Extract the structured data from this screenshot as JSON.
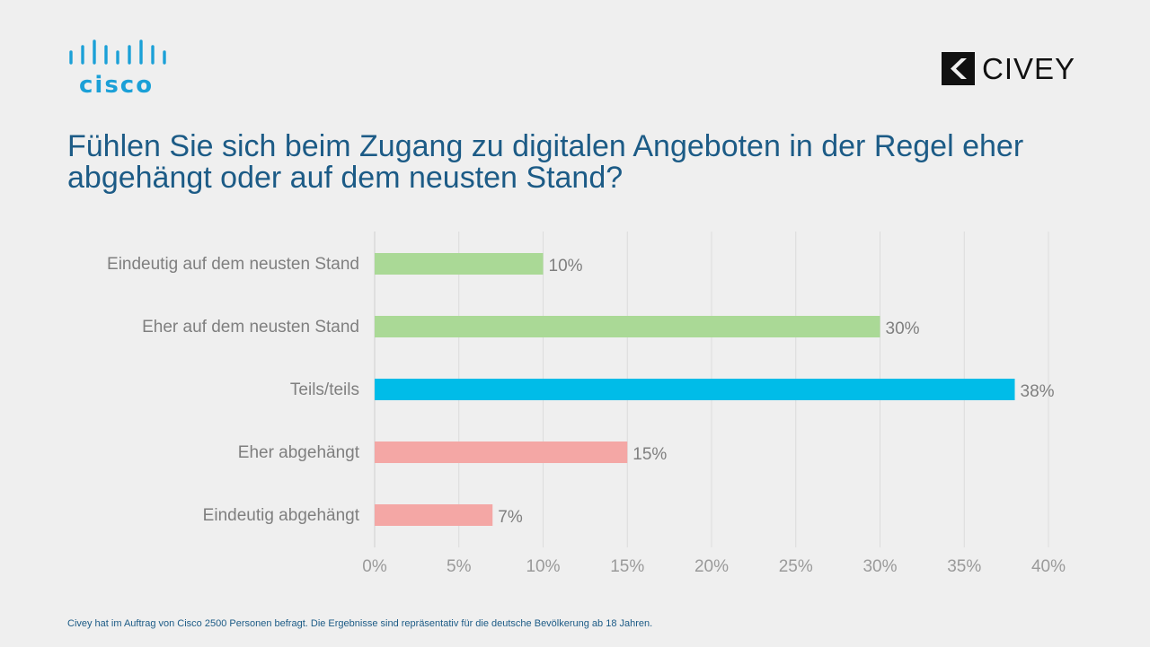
{
  "logos": {
    "left_brand": "cisco",
    "right_brand": "CIVEY",
    "left_color": "#1ba0d7"
  },
  "title": "Fühlen Sie sich beim Zugang zu digitalen Angeboten in der Regel eher abgehängt oder auf dem neusten Stand?",
  "footnote": "Civey hat im Auftrag von Cisco 2500 Personen befragt. Die Ergebnisse sind repräsentativ für die deutsche Bevölkerung ab 18 Jahren.",
  "chart_data": {
    "type": "bar",
    "orientation": "horizontal",
    "categories": [
      "Eindeutig auf dem neusten Stand",
      "Eher auf dem neusten Stand",
      "Teils/teils",
      "Eher abgehängt",
      "Eindeutig abgehängt"
    ],
    "values": [
      10,
      30,
      38,
      15,
      7
    ],
    "value_labels": [
      "10%",
      "30%",
      "38%",
      "15%",
      "7%"
    ],
    "colors": [
      "#aad996",
      "#aad996",
      "#00bce8",
      "#f4a7a5",
      "#f4a7a5"
    ],
    "xlim": [
      0,
      40
    ],
    "xticks": [
      0,
      5,
      10,
      15,
      20,
      25,
      30,
      35,
      40
    ],
    "xtick_labels": [
      "0%",
      "5%",
      "10%",
      "15%",
      "20%",
      "25%",
      "30%",
      "35%",
      "40%"
    ],
    "grid": "vertical",
    "legend": "none"
  }
}
